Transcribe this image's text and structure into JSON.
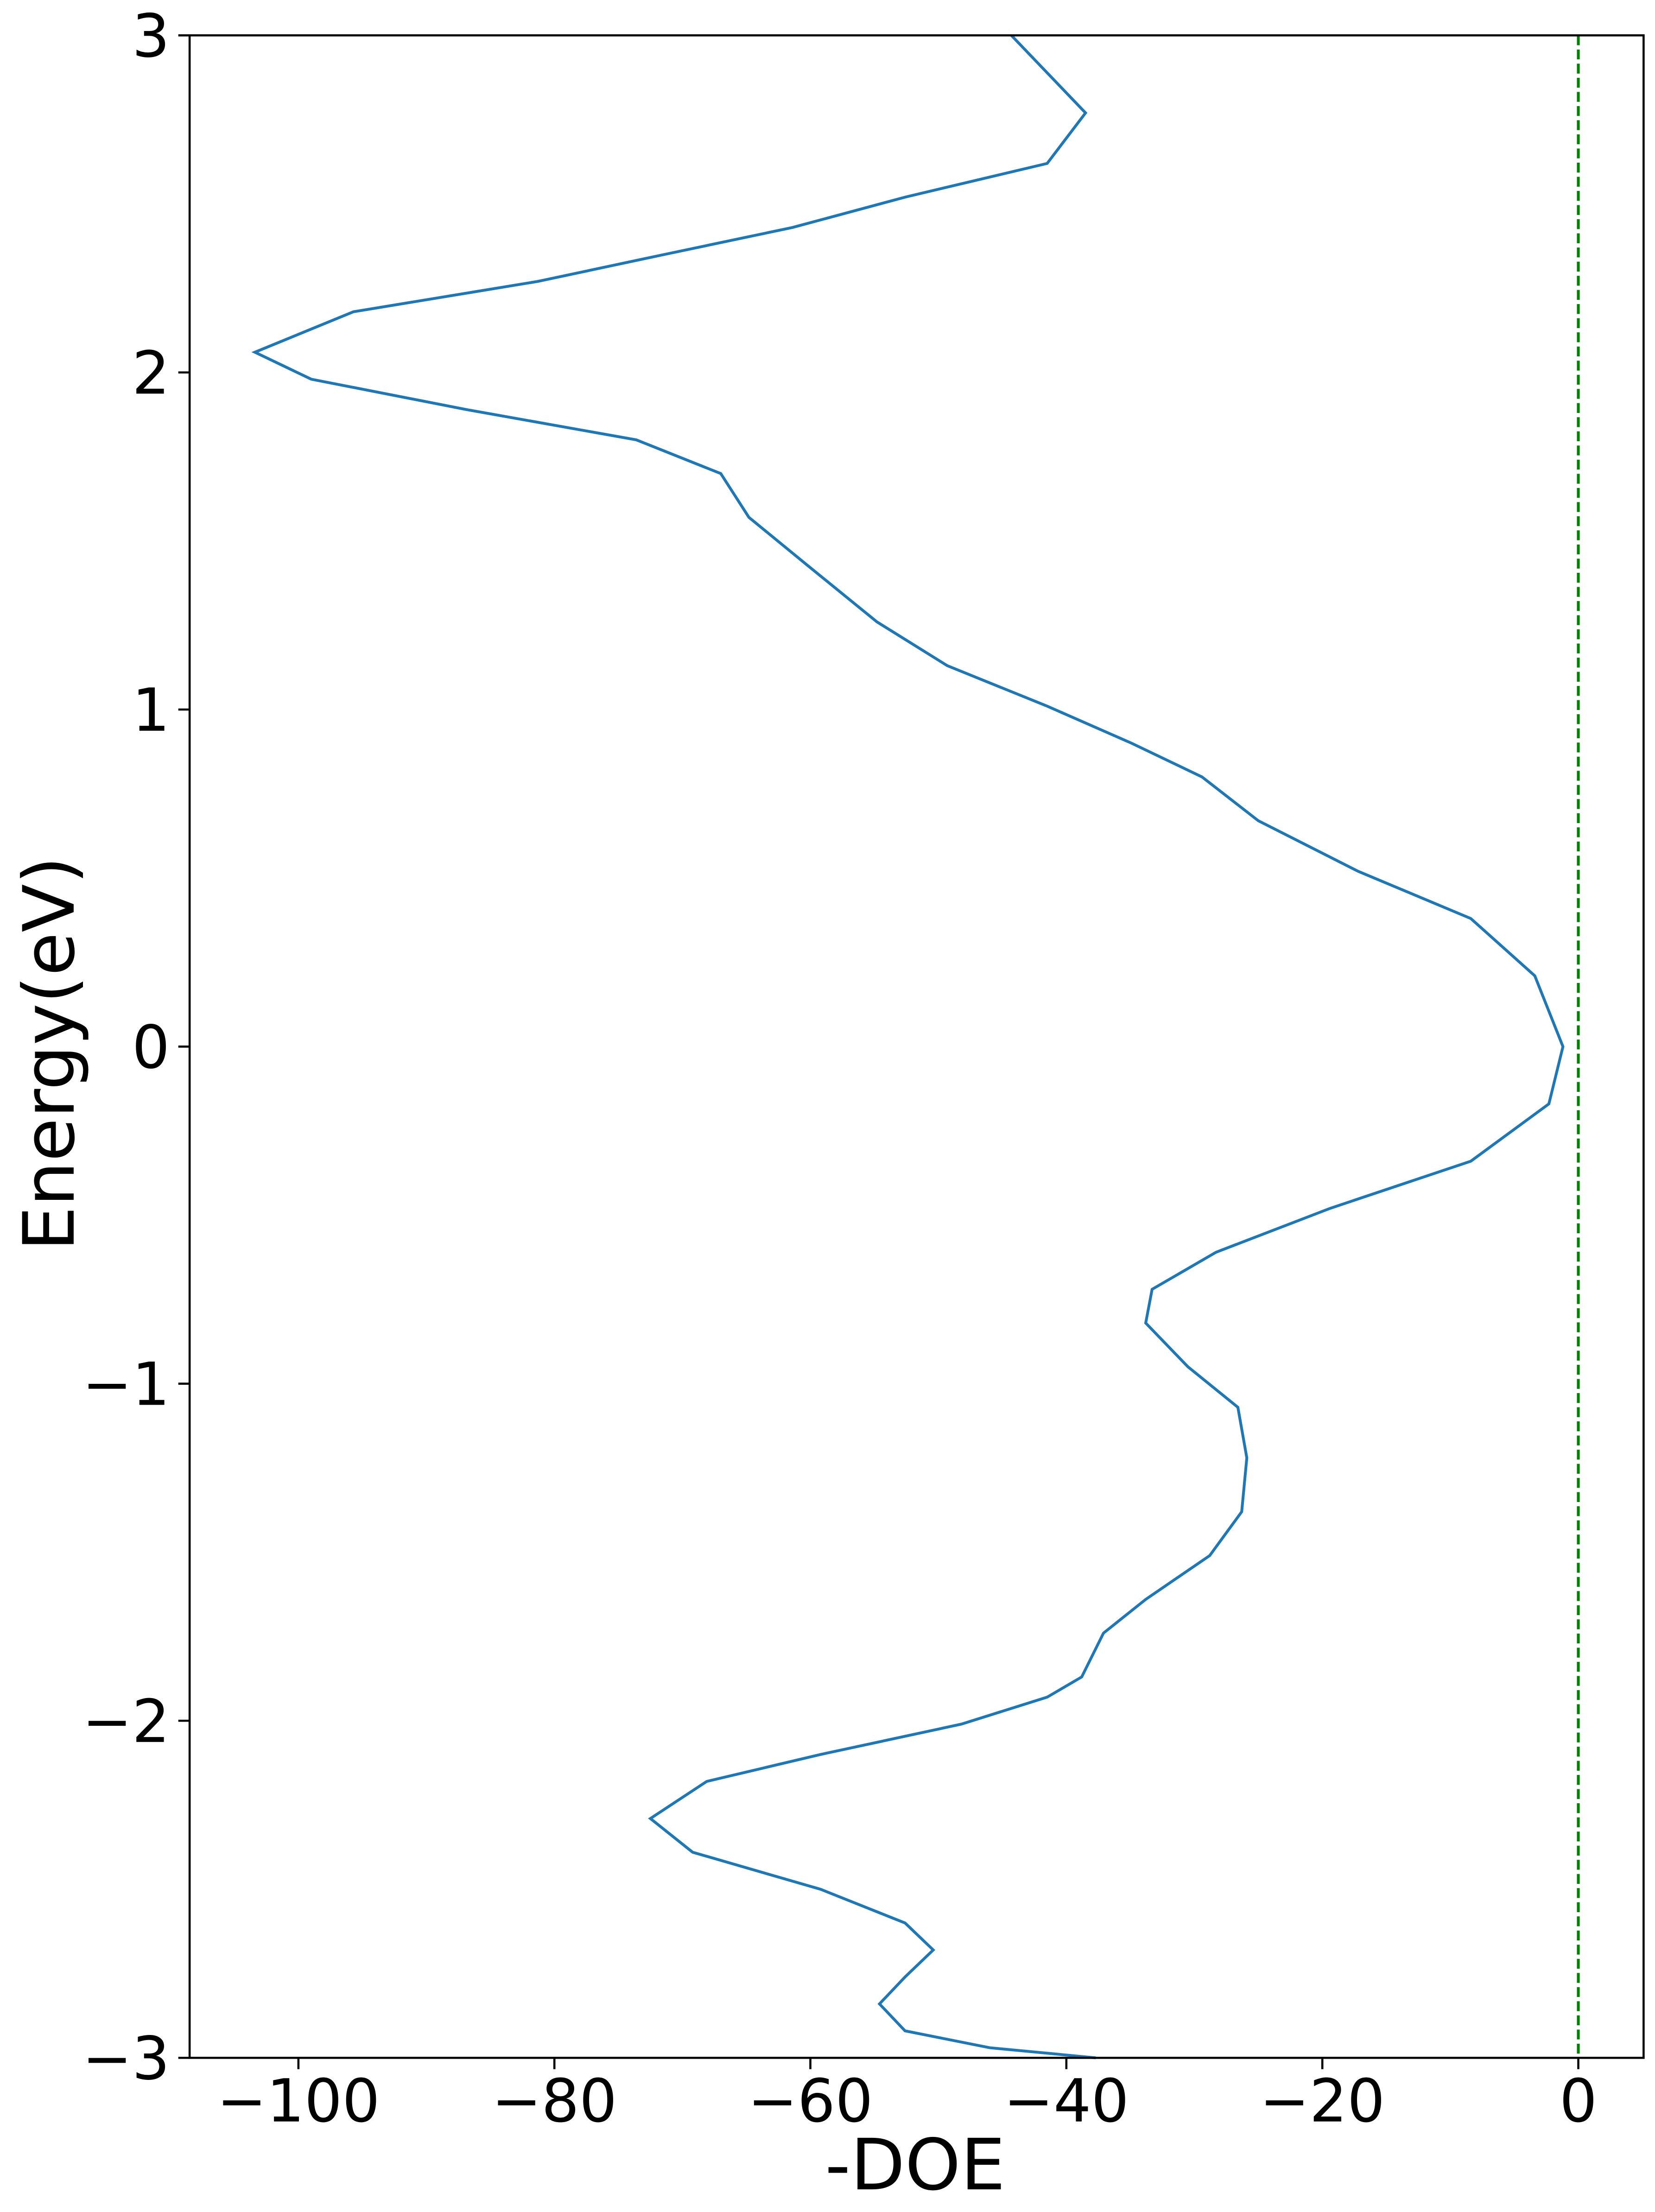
{
  "chart_data": {
    "type": "line",
    "xlabel": "-DOE",
    "ylabel": "Energy(eV)",
    "xlim": [
      -108.5,
      5.1
    ],
    "ylim": [
      -3,
      3
    ],
    "xticks": [
      {
        "value": -100,
        "label": "−100"
      },
      {
        "value": -80,
        "label": "−80"
      },
      {
        "value": -60,
        "label": "−60"
      },
      {
        "value": -40,
        "label": "−40"
      },
      {
        "value": -20,
        "label": "−20"
      },
      0
    ],
    "yticks": [
      {
        "value": -3,
        "label": "−3"
      },
      {
        "value": -2,
        "label": "−2"
      },
      {
        "value": -1,
        "label": "−1"
      },
      0,
      1,
      2,
      3
    ],
    "vline": {
      "x": 0,
      "color": "#008000"
    },
    "series": [
      {
        "color": "#1f77b4",
        "x": [
          -44.3,
          -38.5,
          -41.5,
          -52.6,
          -61.4,
          -71.4,
          -81.3,
          -95.7,
          -103.4,
          -99,
          -86.9,
          -73.6,
          -67,
          -64.8,
          -60.3,
          -54.8,
          -49.3,
          -41.5,
          -34.9,
          -29.4,
          -25,
          -17.2,
          -8.4,
          -3.4,
          -1.2,
          -2.3,
          -8.4,
          -19.4,
          -28.3,
          -33.3,
          -33.8,
          -30.5,
          -26.6,
          -25.9,
          -26.3,
          -28.8,
          -33.8,
          -37.1,
          -38.8,
          -41.5,
          -48.2,
          -59.2,
          -68.1,
          -72.5,
          -69.2,
          -59.2,
          -52.6,
          -50.4,
          -52.6,
          -54.6,
          -52.6,
          -46,
          -37.7
        ],
        "values": [
          3,
          2.77,
          2.62,
          2.52,
          2.43,
          2.35,
          2.27,
          2.18,
          2.06,
          1.98,
          1.89,
          1.8,
          1.7,
          1.57,
          1.43,
          1.26,
          1.13,
          1.01,
          0.9,
          0.8,
          0.67,
          0.52,
          0.38,
          0.21,
          0,
          -0.17,
          -0.34,
          -0.48,
          -0.61,
          -0.72,
          -0.82,
          -0.95,
          -1.07,
          -1.22,
          -1.38,
          -1.51,
          -1.64,
          -1.74,
          -1.87,
          -1.93,
          -2.01,
          -2.1,
          -2.18,
          -2.29,
          -2.39,
          -2.5,
          -2.6,
          -2.68,
          -2.76,
          -2.84,
          -2.92,
          -2.97,
          -3
        ]
      }
    ]
  }
}
